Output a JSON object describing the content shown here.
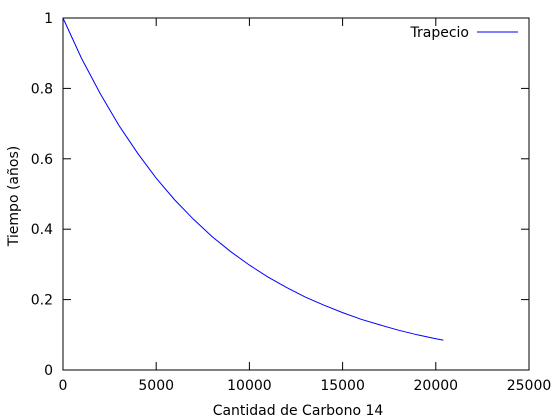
{
  "chart_data": {
    "type": "line",
    "title": "",
    "xlabel": "Cantidad de Carbono 14",
    "ylabel": "Tiempo (años)",
    "xlim": [
      0,
      25000
    ],
    "ylim": [
      0,
      1
    ],
    "x_ticks": [
      "0",
      "5000",
      "10000",
      "15000",
      "20000",
      "25000"
    ],
    "y_ticks": [
      "0",
      "0.2",
      "0.4",
      "0.6",
      "0.8",
      "1"
    ],
    "grid": false,
    "legend": "top-right",
    "series": [
      {
        "name": "Trapecio",
        "color": "#0000ff",
        "x": [
          0,
          1000,
          2000,
          3000,
          4000,
          5000,
          6000,
          7000,
          8000,
          9000,
          10000,
          11000,
          12000,
          13000,
          14000,
          15000,
          16000,
          17000,
          18000,
          19000,
          20000,
          20400
        ],
        "y": [
          1.0,
          0.885,
          0.785,
          0.695,
          0.616,
          0.545,
          0.483,
          0.428,
          0.379,
          0.336,
          0.298,
          0.264,
          0.234,
          0.207,
          0.184,
          0.163,
          0.144,
          0.128,
          0.113,
          0.1,
          0.089,
          0.085
        ]
      }
    ]
  }
}
